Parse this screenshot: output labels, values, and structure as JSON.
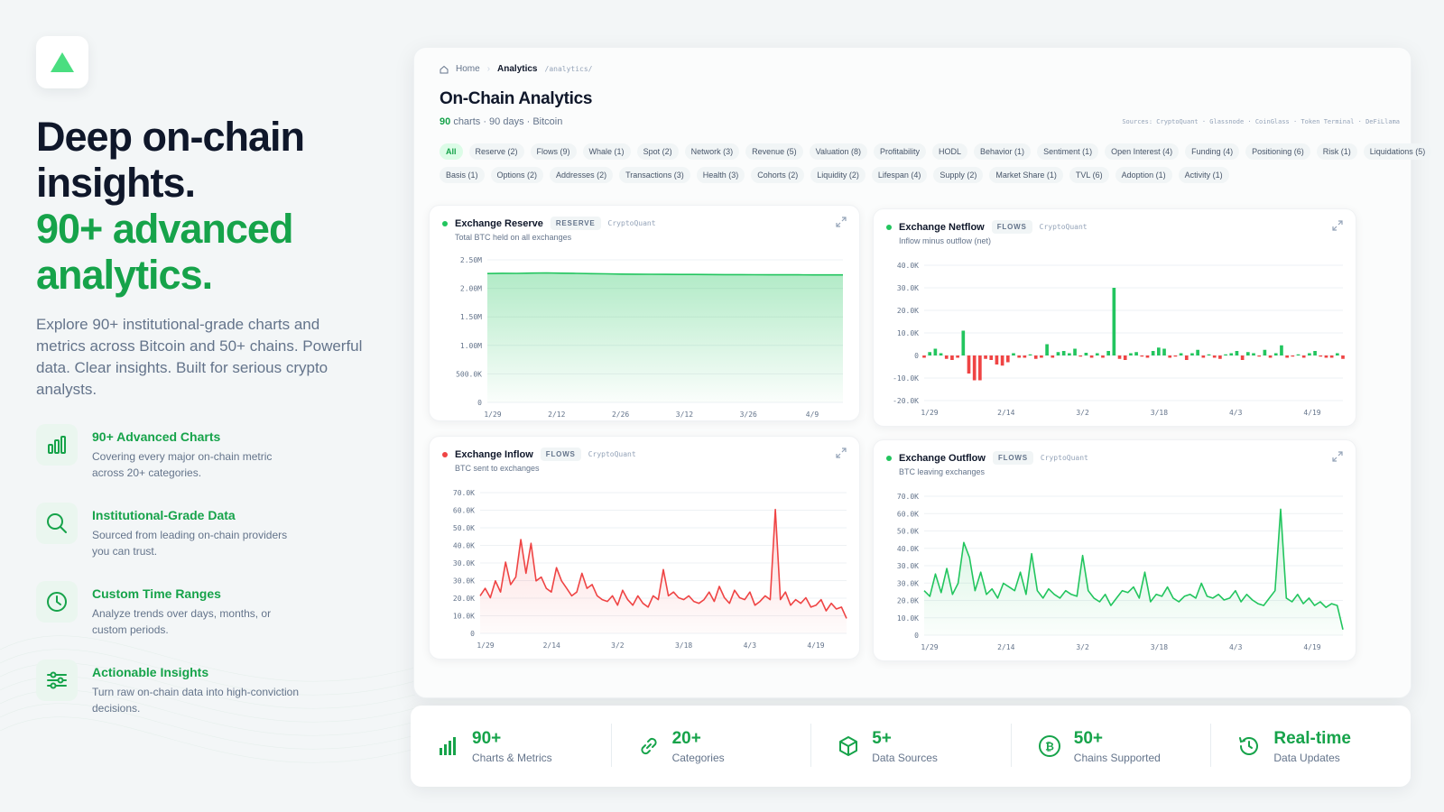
{
  "hero": {
    "headline_line1": "Deep on-chain insights.",
    "headline_line2": "90+ advanced analytics.",
    "lead": "Explore 90+ institutional-grade charts and metrics across Bitcoin and 50+ chains. Powerful data. Clear insights. Built for serious crypto analysts."
  },
  "features": [
    {
      "icon": "bar-chart-icon",
      "title": "90+ Advanced Charts",
      "desc": "Covering every major on-chain metric across 20+ categories."
    },
    {
      "icon": "search-icon",
      "title": "Institutional-Grade Data",
      "desc": "Sourced from leading on-chain providers you can trust."
    },
    {
      "icon": "clock-icon",
      "title": "Custom Time Ranges",
      "desc": "Analyze trends over days, months, or custom periods."
    },
    {
      "icon": "sliders-icon",
      "title": "Actionable Insights",
      "desc": "Turn raw on-chain data into high-conviction decisions."
    }
  ],
  "dashboard": {
    "breadcrumb": {
      "home": "Home",
      "current": "Analytics",
      "path": "/analytics/"
    },
    "title": "On-Chain Analytics",
    "subtitle_count": "90",
    "subtitle_rest": "charts · 90 days · Bitcoin",
    "sources": "Sources: CryptoQuant · Glassnode · CoinGlass · Token Terminal · DeFiLlama",
    "categories_row1": [
      "All",
      "Reserve (2)",
      "Flows (9)",
      "Whale (1)",
      "Spot (2)",
      "Network (3)",
      "Revenue (5)",
      "Valuation (8)",
      "Profitability",
      "HODL",
      "Behavior (1)",
      "Sentiment (1)",
      "Open Interest (4)",
      "Funding (4)",
      "Positioning (6)",
      "Risk (1)",
      "Liquidations (5)"
    ],
    "categories_row2": [
      "Basis (1)",
      "Options (2)",
      "Addresses (2)",
      "Transactions (3)",
      "Health (3)",
      "Cohorts (2)",
      "Liquidity (2)",
      "Lifespan (4)",
      "Supply (2)",
      "Market Share (1)",
      "TVL (6)",
      "Adoption (1)",
      "Activity (1)"
    ]
  },
  "chart_data": [
    {
      "type": "area",
      "title": "Exchange Reserve",
      "tag": "RESERVE",
      "source": "CryptoQuant",
      "description": "Total BTC held on all exchanges",
      "color": "#22c55e",
      "yticks": [
        "2.50M",
        "2.00M",
        "1.50M",
        "1.00M",
        "500.0K",
        "0"
      ],
      "xticks": [
        "1/29",
        "2/12",
        "2/26",
        "3/12",
        "3/26",
        "4/9"
      ],
      "ylim": [
        0,
        2500000
      ],
      "values": [
        2260000,
        2265000,
        2262000,
        2268000,
        2270000,
        2266000,
        2262000,
        2258000,
        2255000,
        2250000,
        2248000,
        2247000,
        2245000,
        2244000,
        2243000,
        2242000,
        2240000,
        2240000,
        2239000,
        2238000,
        2238000,
        2237000,
        2236000,
        2236000,
        2235000
      ]
    },
    {
      "type": "bar",
      "title": "Exchange Netflow",
      "tag": "FLOWS",
      "source": "CryptoQuant",
      "description": "Inflow minus outflow (net)",
      "color_pos": "#22c55e",
      "color_neg": "#ef4444",
      "yticks": [
        "40.0K",
        "30.0K",
        "20.0K",
        "10.0K",
        "0",
        "-10.0K",
        "-20.0K"
      ],
      "xticks": [
        "1/29",
        "2/14",
        "3/2",
        "3/18",
        "4/3",
        "4/19"
      ],
      "ylim": [
        -20000,
        40000
      ],
      "values": [
        -1000,
        1500,
        3000,
        1000,
        -1500,
        -2000,
        -1000,
        11000,
        -8000,
        -11000,
        -11000,
        -1500,
        -2000,
        -4000,
        -4500,
        -3000,
        1000,
        -1000,
        -1000,
        500,
        -1500,
        -1000,
        5000,
        -1000,
        1500,
        2000,
        1000,
        3000,
        -500,
        1200,
        -1000,
        1000,
        -1000,
        2000,
        30000,
        -1500,
        -2000,
        1000,
        1500,
        -500,
        -1000,
        2000,
        3500,
        3000,
        -1000,
        -500,
        1000,
        -2000,
        1000,
        2500,
        -1000,
        500,
        -1000,
        -1500,
        500,
        1000,
        2000,
        -2000,
        1500,
        1000,
        -500,
        2500,
        -1000,
        1000,
        4500,
        -1000,
        -500,
        500,
        -1000,
        1000,
        2000,
        -500,
        -1000,
        -1000,
        1000,
        -1500
      ]
    },
    {
      "type": "line",
      "title": "Exchange Inflow",
      "tag": "FLOWS",
      "source": "CryptoQuant",
      "description": "BTC sent to exchanges",
      "color": "#ef4444",
      "yticks": [
        "70.0K",
        "60.0K",
        "50.0K",
        "40.0K",
        "30.0K",
        "30.0K",
        "20.0K",
        "10.0K",
        "0"
      ],
      "xticks": [
        "1/29",
        "2/14",
        "3/2",
        "3/18",
        "4/3",
        "4/19"
      ],
      "ylim": [
        0,
        75000
      ],
      "values": [
        20000,
        24000,
        19000,
        28000,
        22000,
        38000,
        26000,
        30000,
        50000,
        32000,
        48000,
        28000,
        30000,
        24000,
        22000,
        35000,
        28000,
        24000,
        20000,
        22000,
        32000,
        24000,
        26000,
        20000,
        18000,
        17000,
        20000,
        15000,
        23000,
        18000,
        15000,
        20000,
        16000,
        14000,
        20000,
        18000,
        34000,
        20000,
        22000,
        19000,
        18000,
        20000,
        17000,
        16000,
        18000,
        22000,
        17000,
        25000,
        19000,
        16000,
        23000,
        19000,
        18000,
        22000,
        15000,
        17000,
        20000,
        18000,
        66000,
        18000,
        22000,
        15000,
        18000,
        16000,
        19000,
        14000,
        15000,
        18000,
        12000,
        16000,
        13000,
        14000,
        8000
      ]
    },
    {
      "type": "line",
      "title": "Exchange Outflow",
      "tag": "FLOWS",
      "source": "CryptoQuant",
      "description": "BTC leaving exchanges",
      "color": "#22c55e",
      "yticks": [
        "70.0K",
        "60.0K",
        "50.0K",
        "40.0K",
        "30.0K",
        "30.0K",
        "20.0K",
        "10.0K",
        "0"
      ],
      "xticks": [
        "1/29",
        "2/14",
        "3/2",
        "3/18",
        "4/3",
        "4/19"
      ],
      "ylim": [
        0,
        75000
      ],
      "values": [
        24000,
        21000,
        33000,
        23000,
        36000,
        22000,
        28000,
        50000,
        42000,
        24000,
        34000,
        22000,
        25000,
        20000,
        28000,
        26000,
        24000,
        34000,
        22000,
        44000,
        24000,
        20000,
        25000,
        22000,
        20000,
        24000,
        22000,
        21000,
        43000,
        24000,
        20000,
        18000,
        22000,
        16000,
        20000,
        24000,
        23000,
        26000,
        20000,
        34000,
        18000,
        22000,
        21000,
        26000,
        20000,
        18000,
        21000,
        22000,
        20000,
        28000,
        21000,
        20000,
        22000,
        19000,
        20000,
        24000,
        18000,
        22000,
        19000,
        17000,
        16000,
        20000,
        24000,
        68000,
        20000,
        18000,
        22000,
        17000,
        20000,
        16000,
        18000,
        15000,
        17000,
        16000,
        3000
      ]
    }
  ],
  "stats": [
    {
      "icon": "bar-chart-icon",
      "value": "90+",
      "label": "Charts & Metrics"
    },
    {
      "icon": "link-icon",
      "value": "20+",
      "label": "Categories"
    },
    {
      "icon": "cube-icon",
      "value": "5+",
      "label": "Data Sources"
    },
    {
      "icon": "bitcoin-icon",
      "value": "50+",
      "label": "Chains Supported"
    },
    {
      "icon": "history-icon",
      "value": "Real-time",
      "label": "Data Updates"
    }
  ],
  "colors": {
    "accent": "#16a34a",
    "positive": "#22c55e",
    "negative": "#ef4444"
  }
}
